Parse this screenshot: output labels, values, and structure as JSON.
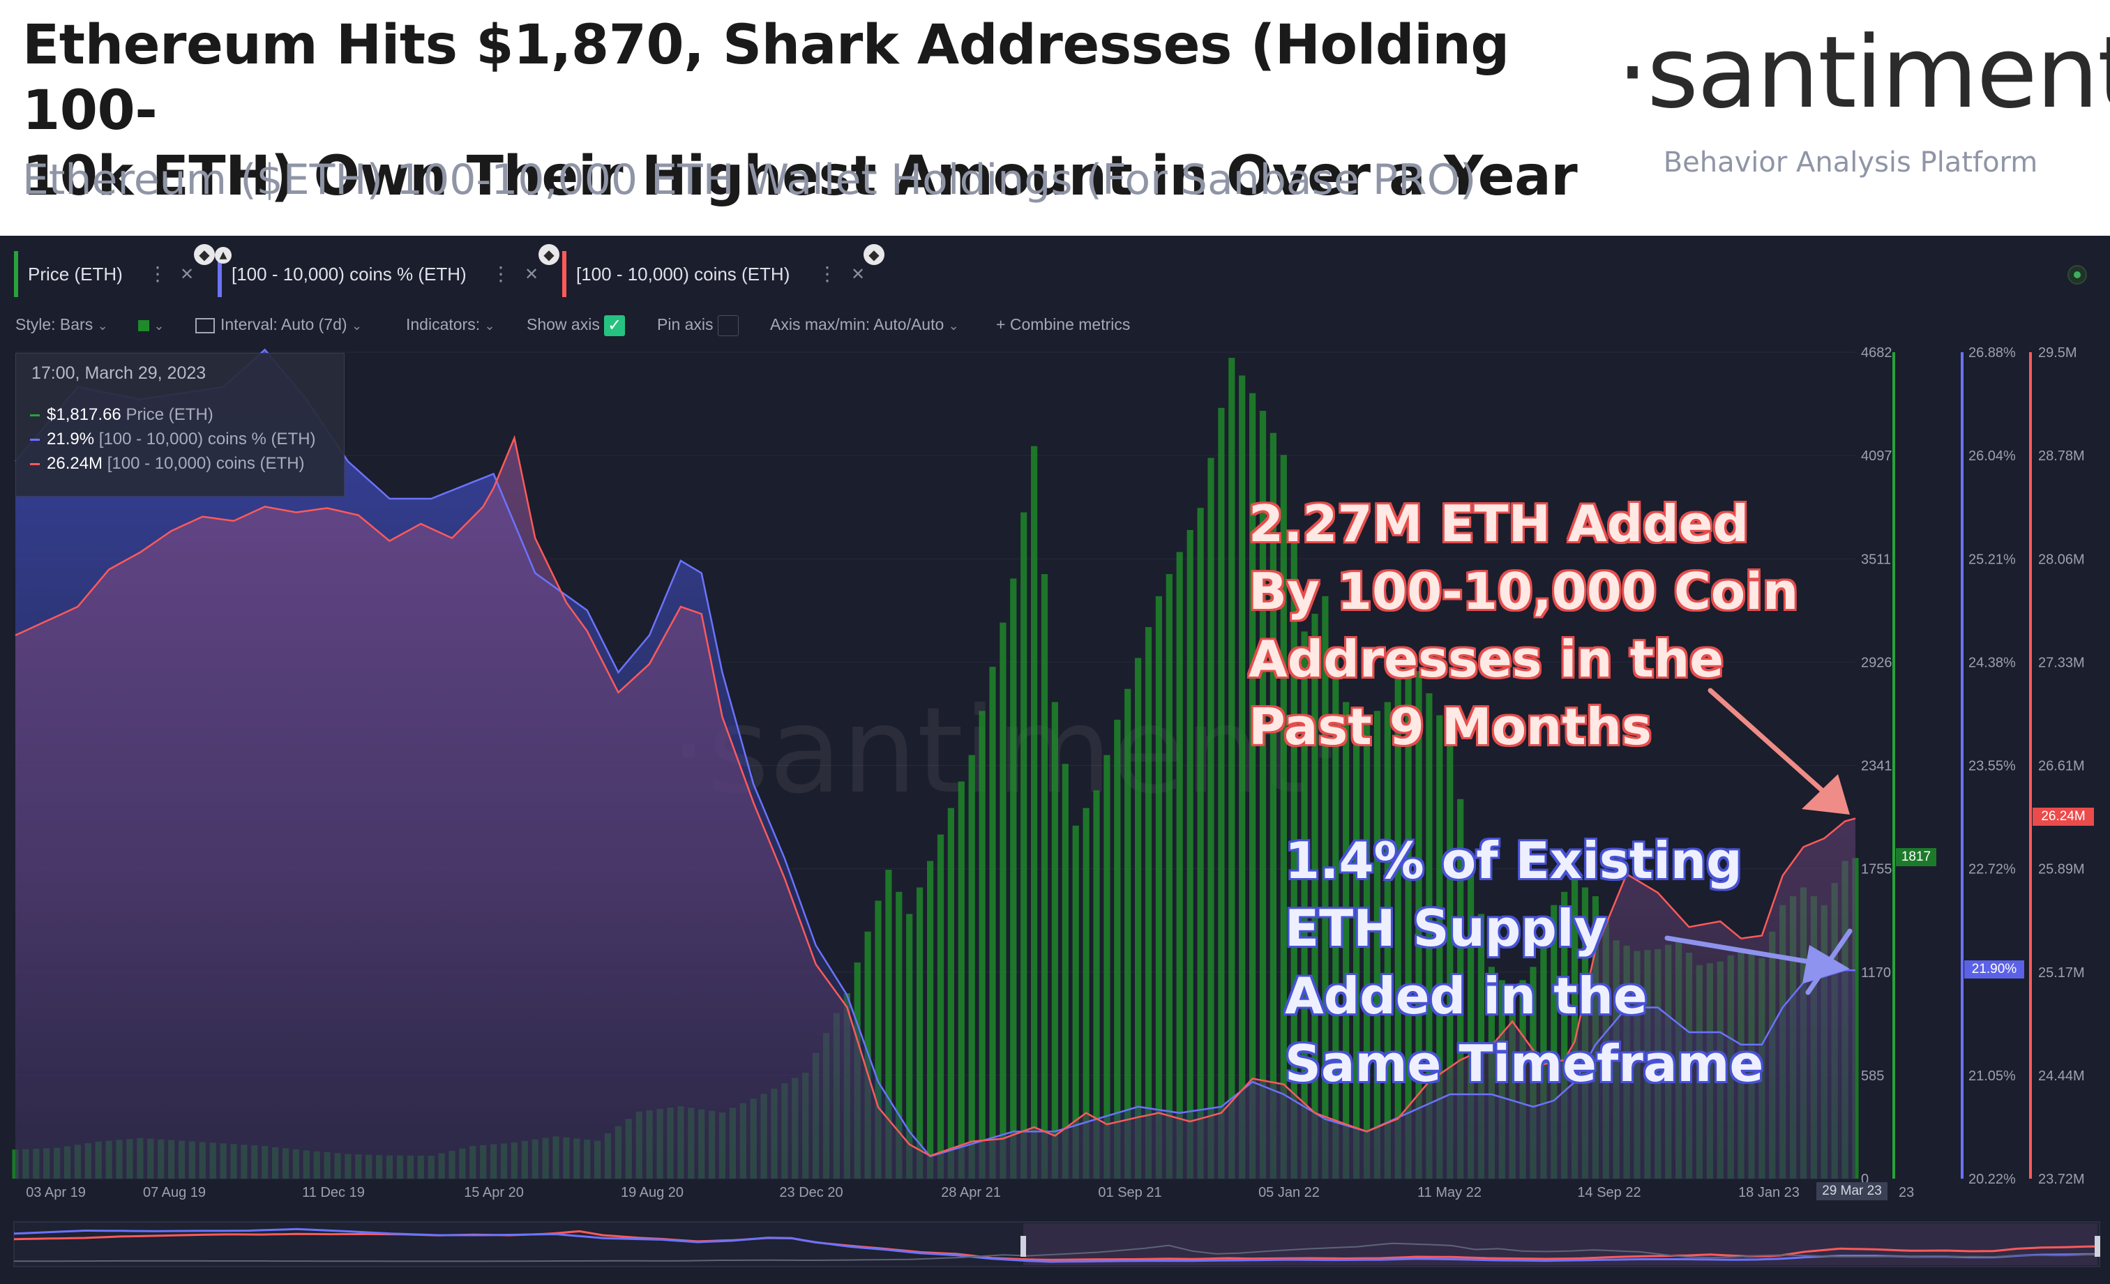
{
  "header": {
    "title_line1": "Ethereum Hits $1,870, Shark Addresses (Holding 100-",
    "title_line2": "10k ETH) Own Their Highest Amount in Over a Year",
    "subtitle": "Ethereum ($ETH) 100-10,000 ETH Wallet Holdings (For Sanbase PRO)",
    "brand": "·santiment·",
    "brand_sub": "Behavior Analysis Platform"
  },
  "metrics": [
    {
      "label": "Price (ETH)",
      "color": "#26a33a"
    },
    {
      "label": "[100 - 10,000) coins % (ETH)",
      "color": "#6b73ff"
    },
    {
      "label": "[100 - 10,000) coins (ETH)",
      "color": "#ff5a5a"
    }
  ],
  "toolbar": {
    "style": "Style: Bars",
    "interval": "Interval: Auto (7d)",
    "indicators": "Indicators:",
    "show_axis": "Show axis",
    "pin_axis": "Pin axis",
    "axis_minmax": "Axis max/min: Auto/Auto",
    "combine": "Combine metrics"
  },
  "tooltip": {
    "date": "17:00, March 29, 2023",
    "rows": [
      {
        "value": "$1,817.66",
        "name": "Price (ETH)",
        "color": "#26a33a"
      },
      {
        "value": "21.9%",
        "name": "[100 - 10,000) coins % (ETH)",
        "color": "#6b73ff"
      },
      {
        "value": "26.24M",
        "name": "[100 - 10,000) coins (ETH)",
        "color": "#ff5a5a"
      }
    ]
  },
  "badges": {
    "price": "1817",
    "pct": "21.90%",
    "coins": "26.24M",
    "date": "29 Mar 23"
  },
  "annotations": {
    "red": [
      "2.27M ETH Added",
      "By 100-10,000 Coin",
      "Addresses in the",
      "Past 9 Months"
    ],
    "blue": [
      "1.4% of Existing",
      "ETH Supply",
      "Added in the",
      "Same Timeframe"
    ]
  },
  "watermark": "·santiment·",
  "chart_data": {
    "type": "bar",
    "x_ticks": [
      "03 Apr 19",
      "07 Aug 19",
      "11 Dec 19",
      "15 Apr 20",
      "19 Aug 20",
      "23 Dec 20",
      "28 Apr 21",
      "01 Sep 21",
      "05 Jan 22",
      "11 May 22",
      "14 Sep 22",
      "18 Jan 23",
      "29 Mar 23"
    ],
    "x_tick_suffix": "23",
    "axes": {
      "price": {
        "ticks": [
          "0",
          "585",
          "1170",
          "1755",
          "2341",
          "2926",
          "3511",
          "4097",
          "4682"
        ],
        "range": [
          0,
          4682
        ],
        "color": "#26a33a"
      },
      "pct": {
        "ticks": [
          "20.22%",
          "21.05%",
          "21.88%",
          "22.72%",
          "23.55%",
          "24.38%",
          "25.21%",
          "26.04%",
          "26.88%"
        ],
        "range": [
          20.22,
          26.88
        ],
        "color": "#6b73ff"
      },
      "coins": {
        "ticks": [
          "23.72M",
          "24.44M",
          "25.17M",
          "25.89M",
          "26.61M",
          "27.33M",
          "28.06M",
          "28.78M",
          "29.5M"
        ],
        "range": [
          23.72,
          29.5
        ],
        "color": "#ff5a5a"
      }
    },
    "price_anchors": [
      [
        0,
        165
      ],
      [
        4,
        175
      ],
      [
        8,
        210
      ],
      [
        12,
        230
      ],
      [
        16,
        215
      ],
      [
        20,
        200
      ],
      [
        24,
        185
      ],
      [
        28,
        160
      ],
      [
        32,
        140
      ],
      [
        36,
        132
      ],
      [
        40,
        130
      ],
      [
        44,
        185
      ],
      [
        48,
        205
      ],
      [
        52,
        240
      ],
      [
        56,
        215
      ],
      [
        60,
        380
      ],
      [
        64,
        410
      ],
      [
        68,
        375
      ],
      [
        72,
        480
      ],
      [
        76,
        600
      ],
      [
        80,
        1050
      ],
      [
        84,
        1750
      ],
      [
        86,
        1500
      ],
      [
        88,
        1800
      ],
      [
        92,
        2400
      ],
      [
        96,
        3400
      ],
      [
        98,
        4150
      ],
      [
        100,
        2700
      ],
      [
        102,
        2000
      ],
      [
        104,
        2200
      ],
      [
        106,
        2600
      ],
      [
        110,
        3300
      ],
      [
        114,
        3800
      ],
      [
        117,
        4650
      ],
      [
        120,
        4350
      ],
      [
        122,
        4100
      ],
      [
        124,
        3100
      ],
      [
        126,
        3300
      ],
      [
        128,
        2700
      ],
      [
        130,
        2600
      ],
      [
        132,
        2700
      ],
      [
        134,
        3000
      ],
      [
        138,
        2500
      ],
      [
        140,
        1800
      ],
      [
        142,
        1200
      ],
      [
        144,
        1050
      ],
      [
        146,
        1200
      ],
      [
        148,
        1550
      ],
      [
        150,
        1700
      ],
      [
        152,
        1600
      ],
      [
        154,
        1350
      ],
      [
        156,
        1290
      ],
      [
        158,
        1300
      ],
      [
        160,
        1350
      ],
      [
        162,
        1210
      ],
      [
        164,
        1230
      ],
      [
        166,
        1300
      ],
      [
        168,
        1250
      ],
      [
        170,
        1550
      ],
      [
        172,
        1650
      ],
      [
        174,
        1550
      ],
      [
        176,
        1800
      ],
      [
        177,
        1817
      ]
    ],
    "coins_anchors": [
      [
        0,
        27.52
      ],
      [
        3,
        27.62
      ],
      [
        6,
        27.72
      ],
      [
        9,
        27.98
      ],
      [
        12,
        28.1
      ],
      [
        15,
        28.25
      ],
      [
        18,
        28.35
      ],
      [
        21,
        28.32
      ],
      [
        24,
        28.42
      ],
      [
        27,
        28.38
      ],
      [
        30,
        28.41
      ],
      [
        33,
        28.36
      ],
      [
        36,
        28.18
      ],
      [
        39,
        28.3
      ],
      [
        42,
        28.2
      ],
      [
        45,
        28.42
      ],
      [
        46,
        28.55
      ],
      [
        48,
        28.9
      ],
      [
        50,
        28.2
      ],
      [
        53,
        27.75
      ],
      [
        55,
        27.55
      ],
      [
        58,
        27.12
      ],
      [
        61,
        27.32
      ],
      [
        64,
        27.72
      ],
      [
        66,
        27.67
      ],
      [
        68,
        26.95
      ],
      [
        71,
        26.35
      ],
      [
        74,
        25.82
      ],
      [
        77,
        25.22
      ],
      [
        80,
        24.92
      ],
      [
        83,
        24.22
      ],
      [
        86,
        23.96
      ],
      [
        88,
        23.88
      ],
      [
        92,
        23.98
      ],
      [
        95,
        24.0
      ],
      [
        98,
        24.08
      ],
      [
        100,
        24.02
      ],
      [
        103,
        24.18
      ],
      [
        105,
        24.1
      ],
      [
        108,
        24.15
      ],
      [
        110,
        24.18
      ],
      [
        113,
        24.12
      ],
      [
        116,
        24.18
      ],
      [
        119,
        24.42
      ],
      [
        122,
        24.38
      ],
      [
        125,
        24.18
      ],
      [
        128,
        24.1
      ],
      [
        130,
        24.05
      ],
      [
        133,
        24.14
      ],
      [
        136,
        24.4
      ],
      [
        139,
        24.55
      ],
      [
        142,
        24.65
      ],
      [
        144,
        24.82
      ],
      [
        147,
        24.52
      ],
      [
        149,
        24.55
      ],
      [
        150,
        24.68
      ],
      [
        152,
        25.32
      ],
      [
        155,
        25.85
      ],
      [
        158,
        25.72
      ],
      [
        161,
        25.48
      ],
      [
        164,
        25.52
      ],
      [
        166,
        25.4
      ],
      [
        168,
        25.42
      ],
      [
        170,
        25.84
      ],
      [
        172,
        26.04
      ],
      [
        174,
        26.1
      ],
      [
        176,
        26.22
      ],
      [
        177,
        26.24
      ]
    ],
    "pct_anchors": [
      [
        0,
        26.0
      ],
      [
        6,
        26.6
      ],
      [
        12,
        26.5
      ],
      [
        20,
        26.6
      ],
      [
        24,
        26.9
      ],
      [
        28,
        26.5
      ],
      [
        32,
        26.0
      ],
      [
        36,
        25.7
      ],
      [
        40,
        25.7
      ],
      [
        43,
        25.8
      ],
      [
        46,
        25.9
      ],
      [
        50,
        25.1
      ],
      [
        55,
        24.8
      ],
      [
        58,
        24.3
      ],
      [
        61,
        24.6
      ],
      [
        64,
        25.2
      ],
      [
        66,
        25.1
      ],
      [
        68,
        24.3
      ],
      [
        71,
        23.4
      ],
      [
        74,
        22.8
      ],
      [
        77,
        22.1
      ],
      [
        80,
        21.7
      ],
      [
        83,
        21.0
      ],
      [
        86,
        20.6
      ],
      [
        88,
        20.4
      ],
      [
        92,
        20.5
      ],
      [
        96,
        20.6
      ],
      [
        100,
        20.6
      ],
      [
        104,
        20.7
      ],
      [
        108,
        20.8
      ],
      [
        112,
        20.75
      ],
      [
        116,
        20.8
      ],
      [
        119,
        21.0
      ],
      [
        122,
        20.9
      ],
      [
        126,
        20.7
      ],
      [
        130,
        20.6
      ],
      [
        134,
        20.75
      ],
      [
        138,
        20.9
      ],
      [
        142,
        20.9
      ],
      [
        146,
        20.8
      ],
      [
        148,
        20.85
      ],
      [
        150,
        21.0
      ],
      [
        152,
        21.3
      ],
      [
        155,
        21.6
      ],
      [
        158,
        21.6
      ],
      [
        161,
        21.4
      ],
      [
        164,
        21.4
      ],
      [
        166,
        21.3
      ],
      [
        168,
        21.3
      ],
      [
        170,
        21.6
      ],
      [
        172,
        21.8
      ],
      [
        174,
        21.85
      ],
      [
        176,
        21.9
      ],
      [
        177,
        21.9
      ]
    ]
  }
}
